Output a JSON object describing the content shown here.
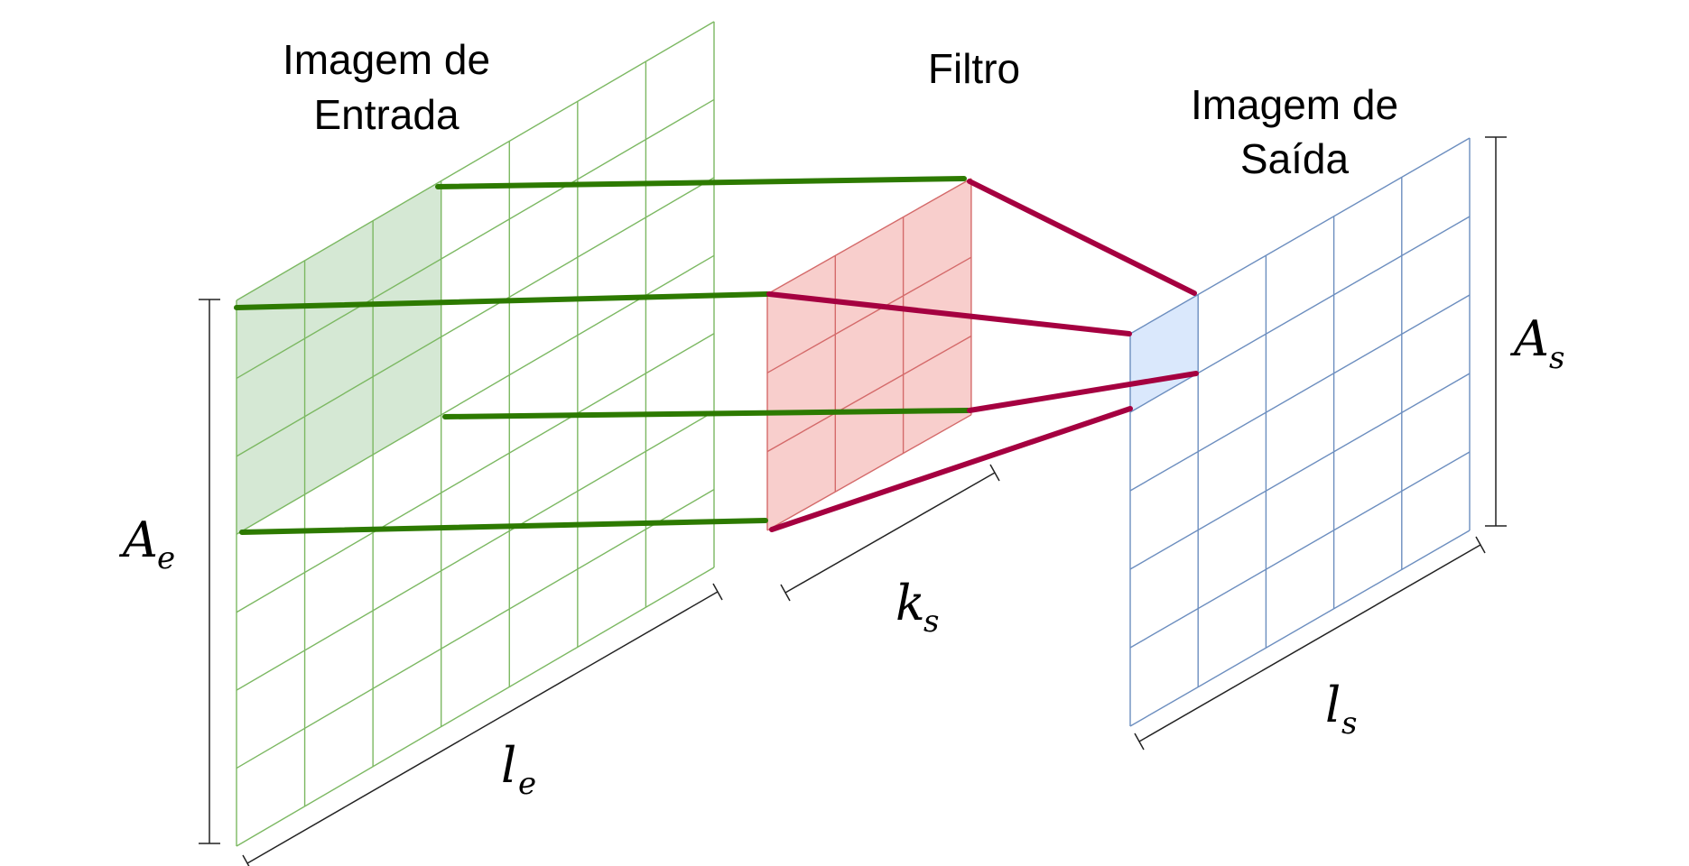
{
  "labels": {
    "input_title_line1": "Imagem de",
    "input_title_line2": "Entrada",
    "filter_title": "Filtro",
    "output_title_line1": "Imagem de",
    "output_title_line2": "Saída"
  },
  "dimensions": {
    "input_height": {
      "main": "A",
      "sub": "e"
    },
    "input_width": {
      "main": "l",
      "sub": "e"
    },
    "kernel_size": {
      "main": "k",
      "sub": "s"
    },
    "output_height": {
      "main": "A",
      "sub": "s"
    },
    "output_width": {
      "main": "l",
      "sub": "s"
    }
  },
  "grids": {
    "input": {
      "columns": 7,
      "rows": 7,
      "highlighted_columns": 3,
      "highlighted_rows": 3
    },
    "filter": {
      "columns": 3,
      "rows": 3
    },
    "output": {
      "columns": 5,
      "rows": 5,
      "highlighted_columns": 1,
      "highlighted_rows": 1
    }
  },
  "colors": {
    "input_grid": "#7cb862",
    "input_fill": "#d5e8d4",
    "input_connector": "#2d7a00",
    "filter_grid": "#d46a6a",
    "filter_fill": "#f8cecc",
    "filter_connector": "#a50040",
    "output_grid": "#6c8ebf",
    "output_fill": "#dae8fc",
    "dimension_line": "#222222"
  }
}
